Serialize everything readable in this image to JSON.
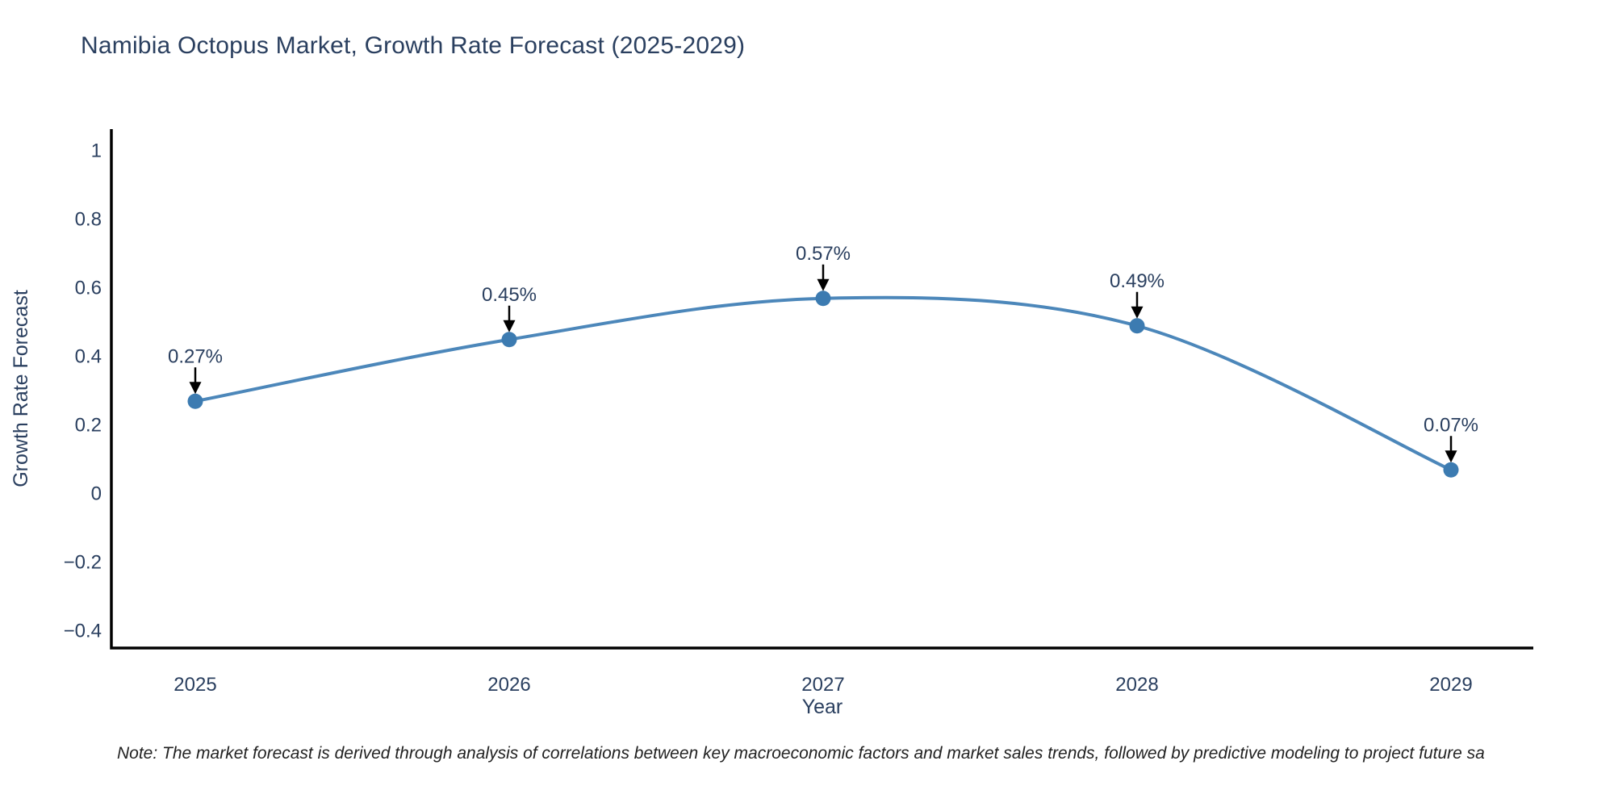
{
  "note": "Note: The market forecast is derived through analysis of correlations between key macroeconomic factors and market sales trends, followed by predictive modeling to project future sa",
  "chart_data": {
    "type": "line",
    "title": "Namibia Octopus Market, Growth Rate Forecast (2025-2029)",
    "xlabel": "Year",
    "ylabel": "Growth Rate Forecast",
    "x": [
      "2025",
      "2026",
      "2027",
      "2028",
      "2029"
    ],
    "series": [
      {
        "name": "Growth Rate Forecast",
        "values": [
          0.27,
          0.45,
          0.57,
          0.49,
          0.07
        ]
      }
    ],
    "point_labels": [
      "0.27%",
      "0.45%",
      "0.57%",
      "0.49%",
      "0.07%"
    ],
    "line_shape": "spline",
    "markers": true,
    "grid": false,
    "legend": "none",
    "ylim": [
      -0.45,
      1.07
    ],
    "yticks": [
      1,
      0.8,
      0.6,
      0.4,
      0.2,
      0,
      -0.2,
      -0.4
    ],
    "ytick_labels": [
      "1",
      "0.8",
      "0.6",
      "0.4",
      "0.2",
      "0",
      "−0.2",
      "−0.4"
    ],
    "colors": {
      "line": "#4c87ba",
      "marker": "#3c7bb1",
      "axis": "#000000",
      "text": "#2a3f5f",
      "arrow": "#000000"
    }
  }
}
